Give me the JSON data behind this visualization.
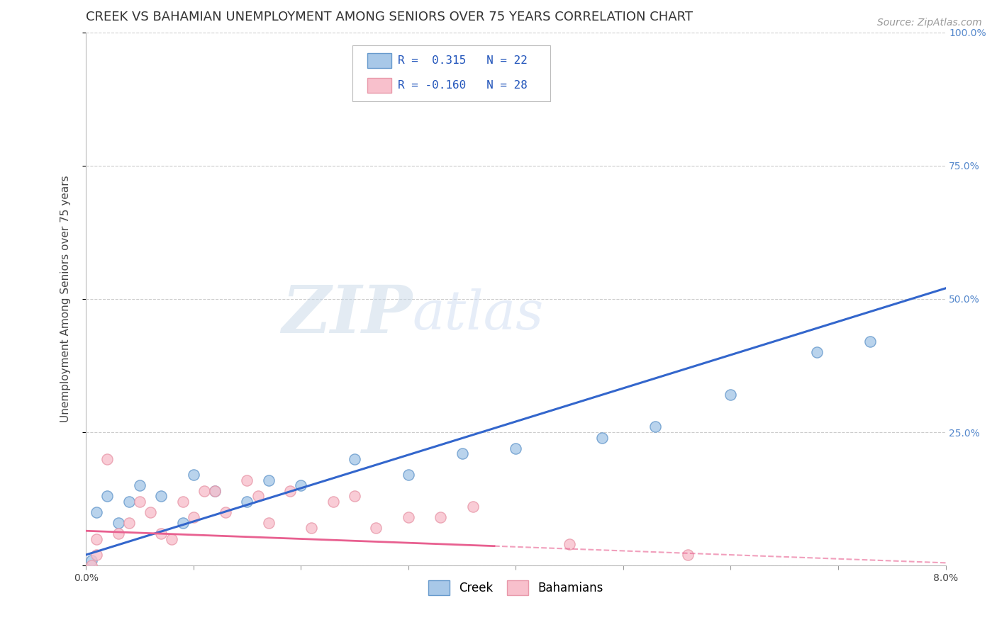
{
  "title": "CREEK VS BAHAMIAN UNEMPLOYMENT AMONG SENIORS OVER 75 YEARS CORRELATION CHART",
  "source": "Source: ZipAtlas.com",
  "ylabel_label": "Unemployment Among Seniors over 75 years",
  "xlim": [
    0.0,
    0.08
  ],
  "ylim": [
    0.0,
    1.0
  ],
  "x_ticks": [
    0.0,
    0.01,
    0.02,
    0.03,
    0.04,
    0.05,
    0.06,
    0.07,
    0.08
  ],
  "x_tick_labels": [
    "0.0%",
    "",
    "",
    "",
    "",
    "",
    "",
    "",
    "8.0%"
  ],
  "y_ticks": [
    0.0,
    0.25,
    0.5,
    0.75,
    1.0
  ],
  "y_tick_labels": [
    "",
    "25.0%",
    "50.0%",
    "75.0%",
    "100.0%"
  ],
  "creek_color": "#a8c8e8",
  "creek_edge": "#6699cc",
  "bahamian_color": "#f8c0cc",
  "bahamian_edge": "#e899aa",
  "trendline_creek_color": "#3366cc",
  "trendline_bahamian_color": "#e86090",
  "R_creek": 0.315,
  "N_creek": 22,
  "R_bahamian": -0.16,
  "N_bahamian": 28,
  "legend_label_creek": "Creek",
  "legend_label_bahamian": "Bahamians",
  "watermark_zip": "ZIP",
  "watermark_atlas": "atlas",
  "creek_x": [
    0.0005,
    0.001,
    0.002,
    0.003,
    0.004,
    0.005,
    0.007,
    0.009,
    0.01,
    0.012,
    0.015,
    0.017,
    0.02,
    0.025,
    0.03,
    0.035,
    0.04,
    0.048,
    0.053,
    0.06,
    0.068,
    0.073
  ],
  "creek_y": [
    0.01,
    0.1,
    0.13,
    0.08,
    0.12,
    0.15,
    0.13,
    0.08,
    0.17,
    0.14,
    0.12,
    0.16,
    0.15,
    0.2,
    0.17,
    0.21,
    0.22,
    0.24,
    0.26,
    0.32,
    0.4,
    0.42
  ],
  "bahamian_x": [
    0.0005,
    0.001,
    0.001,
    0.002,
    0.003,
    0.004,
    0.005,
    0.006,
    0.007,
    0.008,
    0.009,
    0.01,
    0.011,
    0.012,
    0.013,
    0.015,
    0.016,
    0.017,
    0.019,
    0.021,
    0.023,
    0.025,
    0.027,
    0.03,
    0.033,
    0.036,
    0.045,
    0.056
  ],
  "bahamian_y": [
    0.0,
    0.02,
    0.05,
    0.2,
    0.06,
    0.08,
    0.12,
    0.1,
    0.06,
    0.05,
    0.12,
    0.09,
    0.14,
    0.14,
    0.1,
    0.16,
    0.13,
    0.08,
    0.14,
    0.07,
    0.12,
    0.13,
    0.07,
    0.09,
    0.09,
    0.11,
    0.04,
    0.02
  ],
  "marker_size": 120,
  "background_color": "#ffffff",
  "grid_color": "#cccccc",
  "title_fontsize": 13,
  "axis_label_fontsize": 11,
  "tick_fontsize": 10,
  "legend_fontsize": 12,
  "source_fontsize": 10,
  "trendline_creek_intercept": 0.02,
  "trendline_creek_slope": 6.25,
  "trendline_bah_intercept": 0.065,
  "trendline_bah_slope": -0.75
}
